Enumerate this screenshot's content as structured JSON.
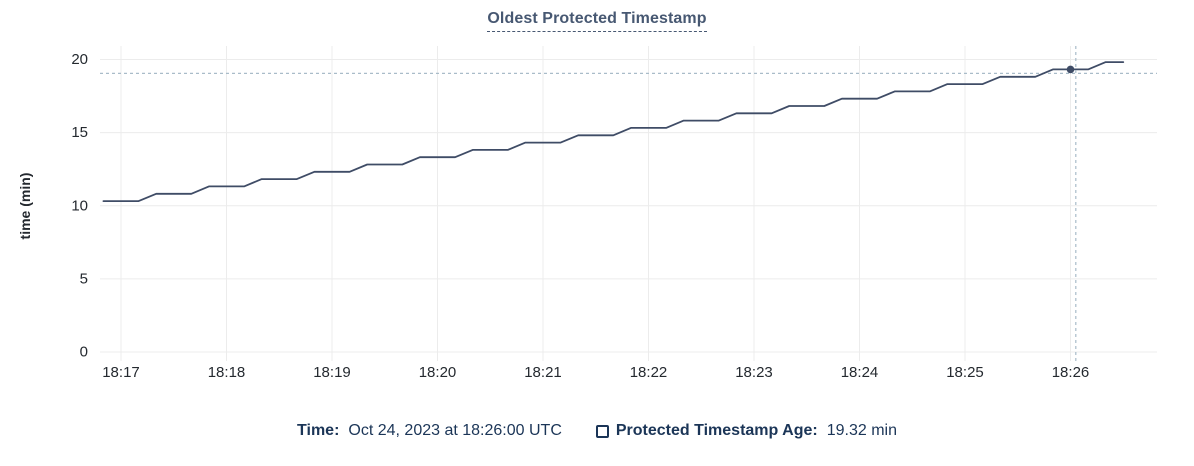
{
  "title": "Oldest Protected Timestamp",
  "colors": {
    "title": "#475872",
    "axis_text": "#24292f",
    "grid": "#ececec",
    "line": "#3f4c66",
    "crosshair": "#a9bcc9",
    "legend_text": "#1b3557"
  },
  "legend": {
    "time_label": "Time:",
    "time_value": "Oct 24, 2023 at 18:26:00 UTC",
    "series_label": "Protected Timestamp Age:",
    "series_value": "19.32 min"
  },
  "chart_data": {
    "type": "line",
    "title": "Oldest Protected Timestamp",
    "xlabel": "",
    "ylabel": "time (min)",
    "ylim": [
      0,
      20
    ],
    "yticks": [
      0,
      5,
      10,
      15,
      20
    ],
    "xticks": [
      "18:17",
      "18:18",
      "18:19",
      "18:20",
      "18:21",
      "18:22",
      "18:23",
      "18:24",
      "18:25",
      "18:26"
    ],
    "x_domain": [
      "18:16:50",
      "18:26:50"
    ],
    "grid": true,
    "legend_position": "bottom",
    "series": [
      {
        "name": "Protected Timestamp Age",
        "unit": "min",
        "points": [
          [
            "18:16:50",
            10.32
          ],
          [
            "18:17:00",
            10.32
          ],
          [
            "18:17:10",
            10.32
          ],
          [
            "18:17:20",
            10.82
          ],
          [
            "18:17:30",
            10.82
          ],
          [
            "18:17:40",
            10.82
          ],
          [
            "18:17:50",
            11.32
          ],
          [
            "18:18:00",
            11.32
          ],
          [
            "18:18:10",
            11.32
          ],
          [
            "18:18:20",
            11.82
          ],
          [
            "18:18:30",
            11.82
          ],
          [
            "18:18:40",
            11.82
          ],
          [
            "18:18:50",
            12.32
          ],
          [
            "18:19:00",
            12.32
          ],
          [
            "18:19:10",
            12.32
          ],
          [
            "18:19:20",
            12.82
          ],
          [
            "18:19:30",
            12.82
          ],
          [
            "18:19:40",
            12.82
          ],
          [
            "18:19:50",
            13.32
          ],
          [
            "18:20:00",
            13.32
          ],
          [
            "18:20:10",
            13.32
          ],
          [
            "18:20:20",
            13.82
          ],
          [
            "18:20:30",
            13.82
          ],
          [
            "18:20:40",
            13.82
          ],
          [
            "18:20:50",
            14.32
          ],
          [
            "18:21:00",
            14.32
          ],
          [
            "18:21:10",
            14.32
          ],
          [
            "18:21:20",
            14.82
          ],
          [
            "18:21:30",
            14.82
          ],
          [
            "18:21:40",
            14.82
          ],
          [
            "18:21:50",
            15.32
          ],
          [
            "18:22:00",
            15.32
          ],
          [
            "18:22:10",
            15.32
          ],
          [
            "18:22:20",
            15.82
          ],
          [
            "18:22:30",
            15.82
          ],
          [
            "18:22:40",
            15.82
          ],
          [
            "18:22:50",
            16.32
          ],
          [
            "18:23:00",
            16.32
          ],
          [
            "18:23:10",
            16.32
          ],
          [
            "18:23:20",
            16.82
          ],
          [
            "18:23:30",
            16.82
          ],
          [
            "18:23:40",
            16.82
          ],
          [
            "18:23:50",
            17.32
          ],
          [
            "18:24:00",
            17.32
          ],
          [
            "18:24:10",
            17.32
          ],
          [
            "18:24:20",
            17.82
          ],
          [
            "18:24:30",
            17.82
          ],
          [
            "18:24:40",
            17.82
          ],
          [
            "18:24:50",
            18.32
          ],
          [
            "18:25:00",
            18.32
          ],
          [
            "18:25:10",
            18.32
          ],
          [
            "18:25:20",
            18.82
          ],
          [
            "18:25:30",
            18.82
          ],
          [
            "18:25:40",
            18.82
          ],
          [
            "18:25:50",
            19.32
          ],
          [
            "18:26:00",
            19.32
          ],
          [
            "18:26:10",
            19.32
          ],
          [
            "18:26:20",
            19.82
          ],
          [
            "18:26:30",
            19.82
          ]
        ]
      }
    ],
    "hover": {
      "time": "18:26:00",
      "value": 19.32,
      "mouse_time": "18:26:03",
      "mouse_value": 19.05
    }
  }
}
